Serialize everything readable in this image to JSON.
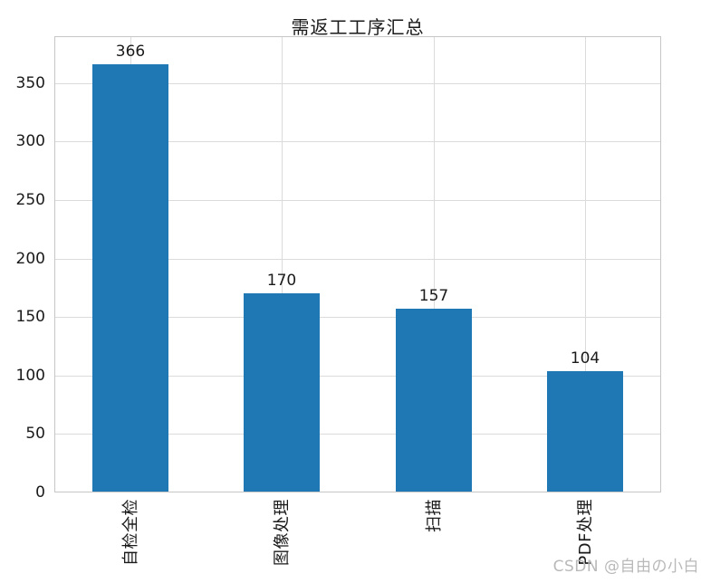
{
  "title": "需返工工序汇总",
  "watermark": "CSDN @自由の小白",
  "chart_data": {
    "type": "bar",
    "title": "需返工工序汇总",
    "categories": [
      "自检全检",
      "图像处理",
      "扫描",
      "PDF处理"
    ],
    "values": [
      366,
      170,
      157,
      104
    ],
    "bar_labels": [
      "366",
      "170",
      "157",
      "104"
    ],
    "xlabel": "",
    "ylabel": "",
    "ylim": [
      0,
      390
    ],
    "yticks": [
      0,
      50,
      100,
      150,
      200,
      250,
      300,
      350
    ],
    "grid": true,
    "legend": false,
    "bar_color": "#1f77b4",
    "grid_color": "#dbdbdb",
    "spine_color": "#c6c6c6",
    "text_color": "#1a1a1a",
    "watermark_color": "#b9b9b9"
  }
}
